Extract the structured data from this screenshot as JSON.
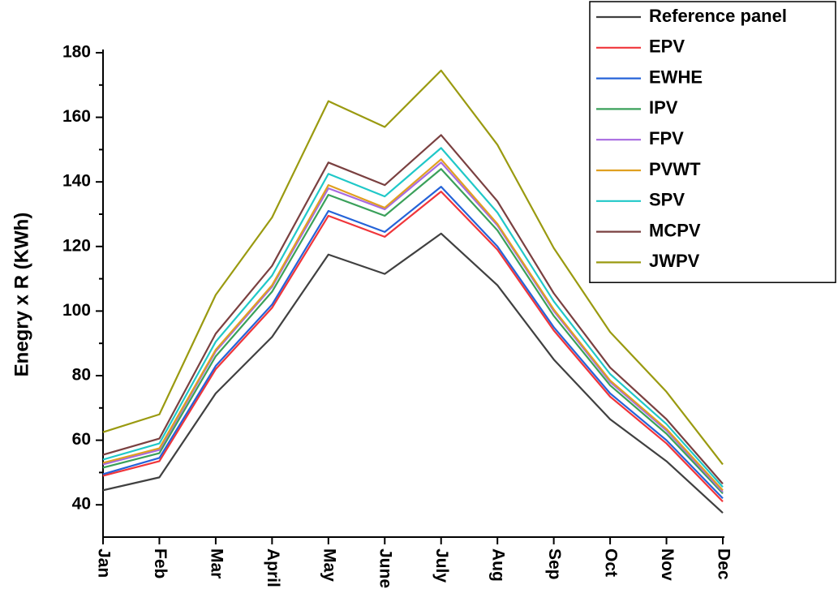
{
  "chart_data": {
    "type": "line",
    "ylabel": "Enegry x R (KWh)",
    "categories": [
      "Jan",
      "Feb",
      "Mar",
      "April",
      "May",
      "June",
      "July",
      "Aug",
      "Sep",
      "Oct",
      "Nov",
      "Dec"
    ],
    "series": [
      {
        "name": "Reference panel",
        "color": "#404040",
        "values": [
          44.5,
          48.5,
          74.5,
          92,
          117.5,
          111.5,
          124,
          108,
          85,
          66.5,
          53.5,
          37.5
        ]
      },
      {
        "name": "EPV",
        "color": "#f0353a",
        "values": [
          49,
          53.5,
          82,
          101,
          129.5,
          123,
          137,
          119,
          94,
          73.5,
          59,
          41
        ]
      },
      {
        "name": "EWHE",
        "color": "#2563d8",
        "values": [
          49.5,
          54.5,
          83,
          102,
          131,
          124.5,
          138.5,
          120,
          95,
          74.5,
          60,
          42
        ]
      },
      {
        "name": "IPV",
        "color": "#3aa05a",
        "values": [
          51.5,
          56,
          86,
          106,
          136,
          129.5,
          144,
          125,
          98.5,
          77,
          62,
          43.5
        ]
      },
      {
        "name": "FPV",
        "color": "#a76ae0",
        "values": [
          52.5,
          57,
          87.5,
          107.5,
          138,
          131.5,
          146,
          126.5,
          100,
          78,
          63,
          44
        ]
      },
      {
        "name": "PVWT",
        "color": "#e0a020",
        "values": [
          53,
          57.5,
          88,
          108,
          139,
          132,
          147,
          127,
          100.5,
          78.5,
          63.5,
          44.5
        ]
      },
      {
        "name": "SPV",
        "color": "#20c8c8",
        "values": [
          54,
          59,
          90.5,
          111,
          142.5,
          135.5,
          150.5,
          130.5,
          103,
          80.5,
          65,
          45.5
        ]
      },
      {
        "name": "MCPV",
        "color": "#7a4040",
        "values": [
          55.5,
          60.5,
          93,
          114,
          146,
          139,
          154.5,
          134,
          105.5,
          82.5,
          66.5,
          46.5
        ]
      },
      {
        "name": "JWPV",
        "color": "#9a9a10",
        "values": [
          62.5,
          68,
          105,
          129,
          165,
          157,
          174.5,
          151.5,
          119.5,
          93.5,
          75,
          52.5
        ]
      }
    ],
    "ylim": [
      30,
      181
    ],
    "yticks": [
      40,
      60,
      80,
      100,
      120,
      140,
      160,
      180
    ],
    "yminorticks": [
      50,
      70,
      90,
      110,
      130,
      150,
      170
    ],
    "grid": false,
    "legend": "top-right"
  }
}
